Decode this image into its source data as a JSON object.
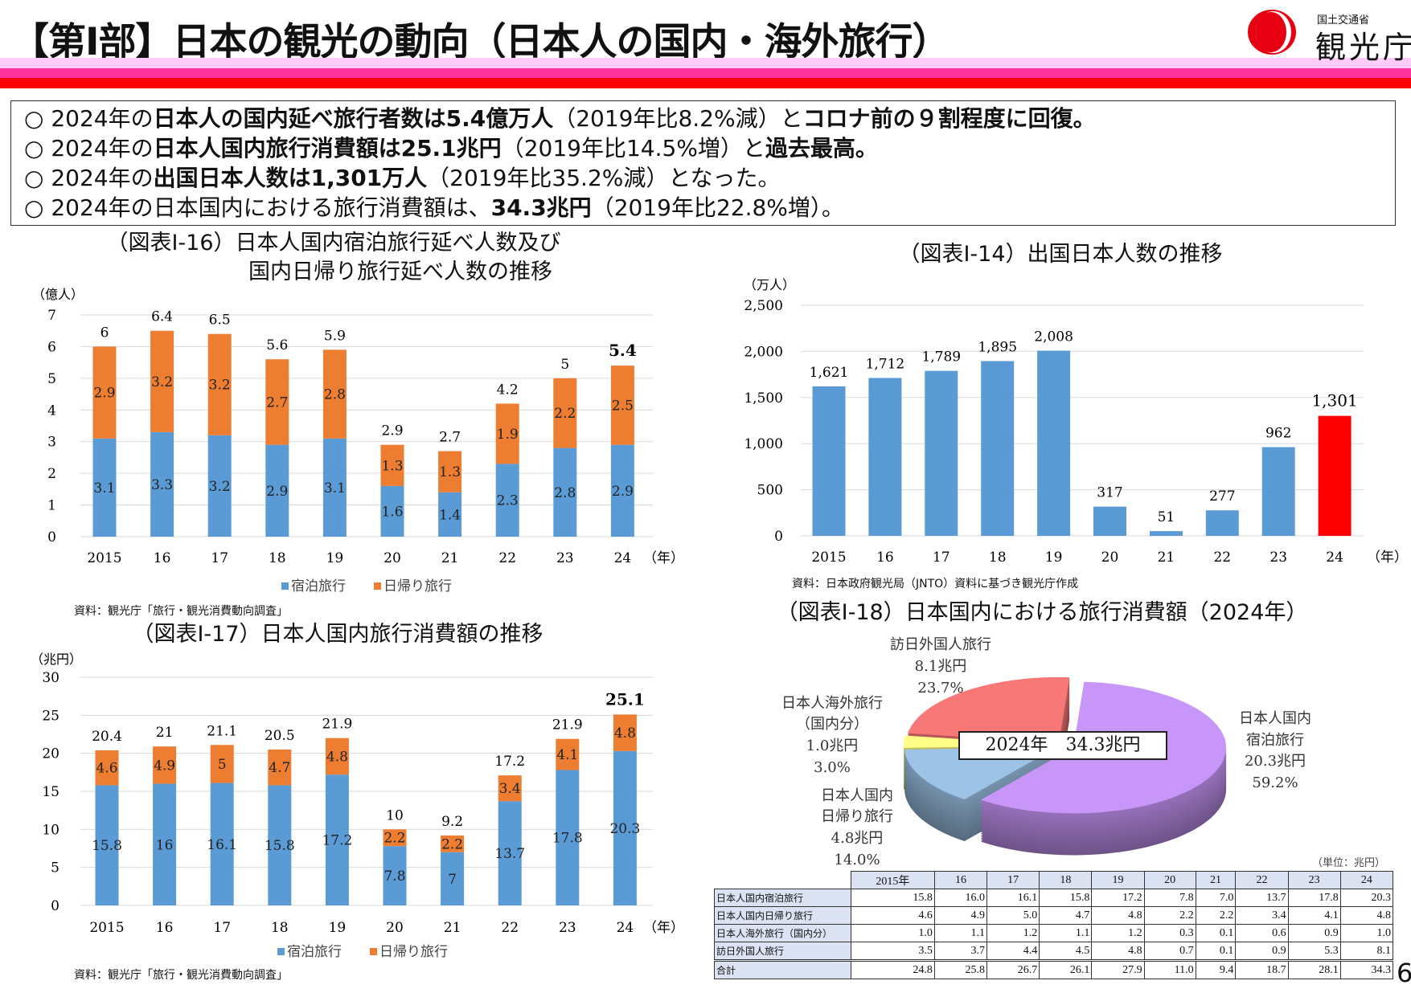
{
  "header": {
    "title": "【第Ⅰ部】日本の観光の動向（日本人の国内・海外旅行）",
    "logo_ministry": "国土交通省",
    "logo_agency": "観光庁",
    "band_colors": [
      "#ffccfa",
      "#ff3399",
      "#ff0000"
    ]
  },
  "summary": [
    [
      {
        "t": "○ 2024年の",
        "b": false
      },
      {
        "t": "日本人の国内延べ旅行者数は5.4億万人",
        "b": true
      },
      {
        "t": "（2019年比8.2%減）と",
        "b": false
      },
      {
        "t": "コロナ前の９割程度に回復。",
        "b": true
      }
    ],
    [
      {
        "t": "○ 2024年の",
        "b": false
      },
      {
        "t": "日本人国内旅行消費額は25.1兆円",
        "b": true
      },
      {
        "t": "（2019年比14.5%増）と",
        "b": false
      },
      {
        "t": "過去最高。",
        "b": true
      }
    ],
    [
      {
        "t": "○ 2024年の",
        "b": false
      },
      {
        "t": "出国日本人数は1,301万人",
        "b": true
      },
      {
        "t": "（2019年比35.2%減）となった。",
        "b": false
      }
    ],
    [
      {
        "t": "○ 2024年の日本国内における旅行消費額は、",
        "b": false
      },
      {
        "t": "34.3兆円",
        "b": true
      },
      {
        "t": "（2019年比22.8%増）。",
        "b": false
      }
    ]
  ],
  "colors": {
    "stay": "#5b9bd5",
    "day": "#ed7d31",
    "bar": "#5b9bd5",
    "highlight": "#ff0000"
  },
  "chart_data": [
    {
      "id": "fig16",
      "type": "bar",
      "stacked": true,
      "title_line1": "（図表Ⅰ-16）日本人国内宿泊旅行延べ人数及び",
      "title_line2": "国内日帰り旅行延べ人数の推移",
      "ylabel": "（億人）",
      "xlabel": "（年）",
      "categories": [
        "2015",
        "16",
        "17",
        "18",
        "19",
        "20",
        "21",
        "22",
        "23",
        "24"
      ],
      "ylim": [
        0,
        7
      ],
      "yticks": [
        0,
        1,
        2,
        3,
        4,
        5,
        6,
        7
      ],
      "grid": true,
      "series": [
        {
          "name": "宿泊旅行",
          "values": [
            3.1,
            3.3,
            3.2,
            2.9,
            3.1,
            1.6,
            1.4,
            2.3,
            2.8,
            2.9
          ]
        },
        {
          "name": "日帰り旅行",
          "values": [
            2.9,
            3.2,
            3.2,
            2.7,
            2.8,
            1.3,
            1.3,
            1.9,
            2.2,
            2.5
          ]
        }
      ],
      "totals": [
        6.0,
        6.4,
        6.5,
        5.6,
        5.9,
        2.9,
        2.7,
        4.2,
        5.0,
        5.4
      ],
      "legend_position": "bottom",
      "source": "資料：観光庁「旅行・観光消費動向調査」"
    },
    {
      "id": "fig17",
      "type": "bar",
      "stacked": true,
      "title_line1": "（図表Ⅰ-17）日本人国内旅行消費額の推移",
      "ylabel": "（兆円）",
      "xlabel": "（年）",
      "categories": [
        "2015",
        "16",
        "17",
        "18",
        "19",
        "20",
        "21",
        "22",
        "23",
        "24"
      ],
      "ylim": [
        0,
        30
      ],
      "yticks": [
        0,
        5,
        10,
        15,
        20,
        25,
        30
      ],
      "grid": true,
      "series": [
        {
          "name": "宿泊旅行",
          "values": [
            15.8,
            16.0,
            16.1,
            15.8,
            17.2,
            7.8,
            7.0,
            13.7,
            17.8,
            20.3
          ]
        },
        {
          "name": "日帰り旅行",
          "values": [
            4.6,
            4.9,
            5.0,
            4.7,
            4.8,
            2.2,
            2.2,
            3.4,
            4.1,
            4.8
          ]
        }
      ],
      "totals": [
        20.4,
        21.0,
        21.1,
        20.5,
        21.9,
        10.0,
        9.2,
        17.2,
        21.9,
        25.1
      ],
      "legend_position": "bottom",
      "source": "資料：観光庁「旅行・観光消費動向調査」"
    },
    {
      "id": "fig14",
      "type": "bar",
      "title_line1": "（図表Ⅰ-14）出国日本人数の推移",
      "ylabel": "（万人）",
      "xlabel": "（年）",
      "categories": [
        "2015",
        "16",
        "17",
        "18",
        "19",
        "20",
        "21",
        "22",
        "23",
        "24"
      ],
      "ylim": [
        0,
        2500
      ],
      "yticks": [
        0,
        500,
        1000,
        1500,
        2000,
        2500
      ],
      "ytick_labels": [
        "0",
        "500",
        "1,000",
        "1,500",
        "2,000",
        "2,500"
      ],
      "grid": true,
      "values": [
        1621,
        1712,
        1789,
        1895,
        2008,
        317,
        51,
        277,
        962,
        1301
      ],
      "value_labels": [
        "1,621",
        "1,712",
        "1,789",
        "1,895",
        "2,008",
        "317",
        "51",
        "277",
        "962",
        "1,301"
      ],
      "highlight_last": true,
      "source": "資料：日本政府観光局（JNTO）資料に基づき観光庁作成"
    },
    {
      "id": "fig18",
      "type": "pie",
      "title_line1": "（図表Ⅰ-18）日本国内における旅行消費額（2024年）",
      "center_label": "2024年　34.3兆円",
      "slices": [
        {
          "name_lines": [
            "日本人国内",
            "宿泊旅行"
          ],
          "value": 20.3,
          "value_label": "20.3兆円",
          "percent": 59.2,
          "percent_label": "59.2%",
          "color": "#c896f8"
        },
        {
          "name_lines": [
            "日本人国内",
            "日帰り旅行"
          ],
          "value": 4.8,
          "value_label": "4.8兆円",
          "percent": 14.0,
          "percent_label": "14.0%",
          "color": "#9dc3e6"
        },
        {
          "name_lines": [
            "日本人海外旅行",
            "（国内分）"
          ],
          "value": 1.0,
          "value_label": "1.0兆円",
          "percent": 3.0,
          "percent_label": "3.0%",
          "color": "#ffff88"
        },
        {
          "name_lines": [
            "訪日外国人旅行"
          ],
          "value": 8.1,
          "value_label": "8.1兆円",
          "percent": 23.7,
          "percent_label": "23.7%",
          "color": "#f87878"
        }
      ],
      "unit_note": "（単位：兆円）",
      "table": {
        "header": [
          "2015年",
          "16",
          "17",
          "18",
          "19",
          "20",
          "21",
          "22",
          "23",
          "24"
        ],
        "rows": [
          {
            "label": "日本人国内宿泊旅行",
            "values": [
              "15.8",
              "16.0",
              "16.1",
              "15.8",
              "17.2",
              "7.8",
              "7.0",
              "13.7",
              "17.8",
              "20.3"
            ]
          },
          {
            "label": "日本人国内日帰り旅行",
            "values": [
              "4.6",
              "4.9",
              "5.0",
              "4.7",
              "4.8",
              "2.2",
              "2.2",
              "3.4",
              "4.1",
              "4.8"
            ]
          },
          {
            "label": "日本人海外旅行（国内分）",
            "values": [
              "1.0",
              "1.1",
              "1.2",
              "1.1",
              "1.2",
              "0.3",
              "0.1",
              "0.6",
              "0.9",
              "1.0"
            ]
          },
          {
            "label": "訪日外国人旅行",
            "values": [
              "3.5",
              "3.7",
              "4.4",
              "4.5",
              "4.8",
              "0.7",
              "0.1",
              "0.9",
              "5.3",
              "8.1"
            ]
          },
          {
            "label": "合計",
            "values": [
              "24.8",
              "25.8",
              "26.7",
              "26.1",
              "27.9",
              "11.0",
              "9.4",
              "18.7",
              "28.1",
              "34.3"
            ]
          }
        ]
      }
    }
  ],
  "page_number": "6"
}
